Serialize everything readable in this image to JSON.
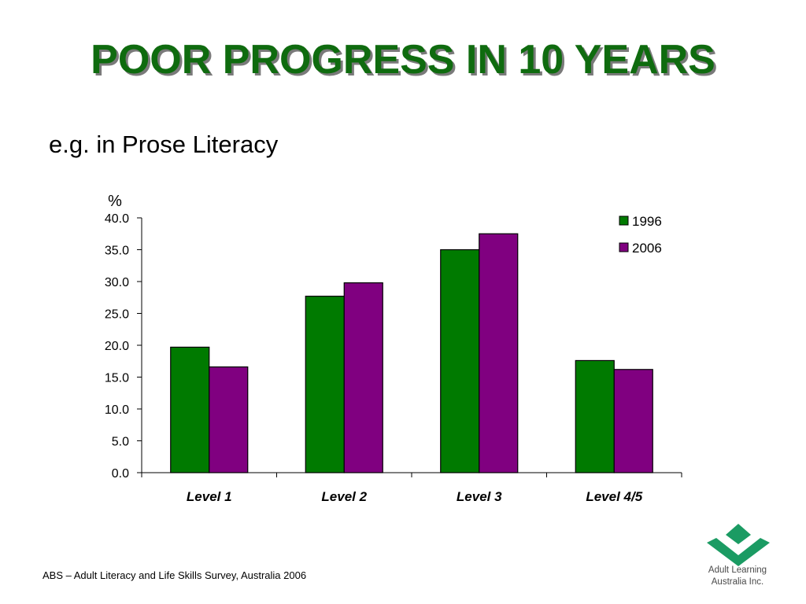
{
  "slide": {
    "title": "POOR PROGRESS IN 10 YEARS",
    "subtitle": "e.g. in Prose Literacy",
    "footer": "ABS – Adult Literacy and Life Skills Survey, Australia 2006",
    "logo": {
      "line1": "Adult Learning",
      "line2": "Australia Inc."
    }
  },
  "colors": {
    "title": "#0f6b0f",
    "series_1996": "#007a00",
    "series_2006": "#800080",
    "logo": "#1b9b63"
  },
  "chart_data": {
    "type": "bar",
    "ylabel": "%",
    "xlabel": "",
    "categories": [
      "Level 1",
      "Level 2",
      "Level 3",
      "Level 4/5"
    ],
    "series": [
      {
        "name": "1996",
        "values": [
          19.7,
          27.7,
          35.0,
          17.6
        ]
      },
      {
        "name": "2006",
        "values": [
          16.6,
          29.8,
          37.5,
          16.2
        ]
      }
    ],
    "ylim": [
      0,
      40
    ],
    "yticks": [
      "0.0",
      "5.0",
      "10.0",
      "15.0",
      "20.0",
      "25.0",
      "30.0",
      "35.0",
      "40.0"
    ],
    "grid": false,
    "legend": "top-right"
  }
}
